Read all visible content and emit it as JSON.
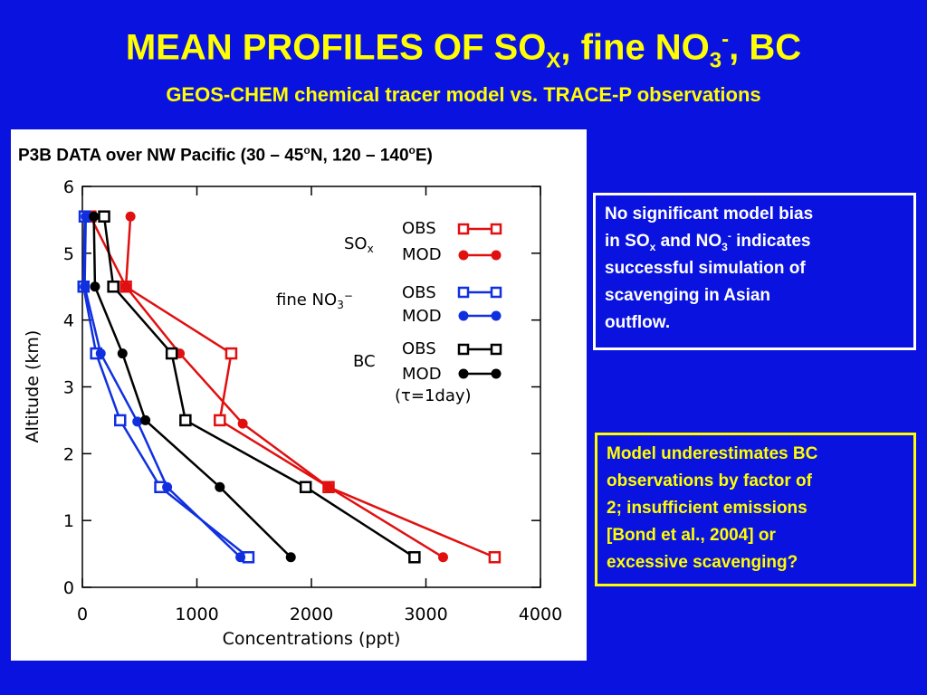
{
  "header": {
    "title_main": "MEAN PROFILES OF SO",
    "title_sub_x": "X",
    "title_mid": ", fine NO",
    "title_sub_3": "3",
    "title_sup_minus": "-",
    "title_end": ", BC",
    "subtitle": "GEOS-CHEM chemical tracer model vs. TRACE-P observations"
  },
  "panel": {
    "heading_part1": "P3B DATA over NW Pacific (30 – 45",
    "heading_sup1": "o",
    "heading_part2": "N, 120 – 140",
    "heading_sup2": "o",
    "heading_part3": "E)"
  },
  "notes": {
    "note1": {
      "l1a": "No significant model bias",
      "l2a": "in SO",
      "l2sub": "x",
      "l2b": " and NO",
      "l2sub2": "3",
      "l2sup": "-",
      "l2c": " indicates",
      "l3": "successful simulation of",
      "l4": "scavenging in Asian",
      "l5": "outflow."
    },
    "note2": {
      "l1": "Model underestimates BC",
      "l2": "observations by factor of",
      "l3": "2; insufficient emissions",
      "l4": "[Bond et al., 2004] or",
      "l5": "excessive scavenging?"
    }
  },
  "colors": {
    "background": "#0a12e0",
    "title": "#ffff00",
    "so4": "#e01010",
    "no3": "#1030e0",
    "bc": "#000000"
  },
  "chart_data": {
    "type": "line",
    "xlabel": "Concentrations (ppt)",
    "ylabel": "Altitude (km)",
    "xlim": [
      0,
      4000
    ],
    "ylim": [
      0,
      6
    ],
    "xticks": [
      0,
      1000,
      2000,
      3000,
      4000
    ],
    "yticks": [
      0,
      1,
      2,
      3,
      4,
      5,
      6
    ],
    "grid": false,
    "legend_position": "right",
    "legend": {
      "so4_label": "SO",
      "so4_sub": "x",
      "no3_label": "fine NO",
      "no3_sub": "3",
      "no3_sup": "−",
      "bc_label": "BC",
      "obs": "OBS",
      "mod": "MOD",
      "tau_note": "(τ=1day)"
    },
    "series": [
      {
        "group": "SOx",
        "kind": "obs",
        "color": "#e01010",
        "x": [
          3600,
          2150,
          1200,
          1300,
          380,
          70
        ],
        "y": [
          0.45,
          1.5,
          2.5,
          3.5,
          4.5,
          5.55
        ]
      },
      {
        "group": "SOx",
        "kind": "mod",
        "color": "#e01010",
        "x": [
          3150,
          2150,
          1400,
          850,
          380,
          420
        ],
        "y": [
          0.45,
          1.5,
          2.45,
          3.5,
          4.5,
          5.55
        ]
      },
      {
        "group": "fine NO3",
        "kind": "obs",
        "color": "#1030e0",
        "x": [
          1450,
          680,
          330,
          120,
          10,
          20
        ],
        "y": [
          0.45,
          1.5,
          2.5,
          3.5,
          4.5,
          5.55
        ]
      },
      {
        "group": "fine NO3",
        "kind": "mod",
        "color": "#1030e0",
        "x": [
          1380,
          740,
          480,
          160,
          20,
          30
        ],
        "y": [
          0.45,
          1.5,
          2.48,
          3.5,
          4.5,
          5.55
        ]
      },
      {
        "group": "BC",
        "kind": "obs",
        "color": "#000000",
        "x": [
          2900,
          1950,
          900,
          780,
          270,
          190
        ],
        "y": [
          0.45,
          1.5,
          2.5,
          3.5,
          4.5,
          5.55
        ]
      },
      {
        "group": "BC",
        "kind": "mod",
        "color": "#000000",
        "x": [
          1820,
          1200,
          550,
          350,
          110,
          100
        ],
        "y": [
          0.45,
          1.5,
          2.5,
          3.5,
          4.5,
          5.55
        ]
      }
    ]
  }
}
